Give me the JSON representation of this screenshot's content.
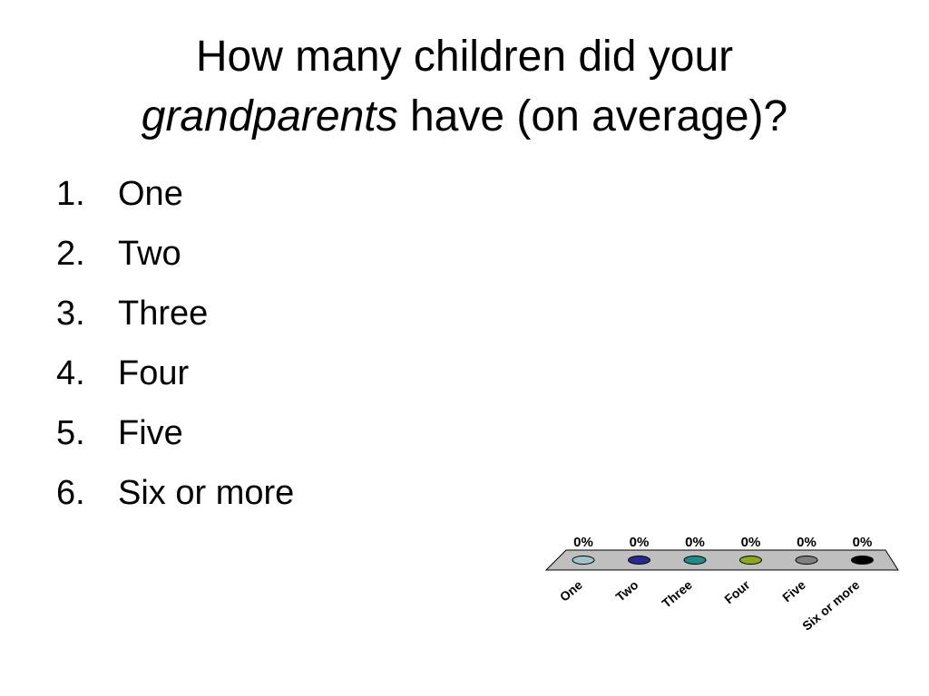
{
  "title": {
    "line1": "How many children did your",
    "italic": "grandparents",
    "rest": " have (on average)?"
  },
  "options": [
    {
      "number": "1.",
      "label": "One"
    },
    {
      "number": "2.",
      "label": "Two"
    },
    {
      "number": "3.",
      "label": "Three"
    },
    {
      "number": "4.",
      "label": "Four"
    },
    {
      "number": "5.",
      "label": "Five"
    },
    {
      "number": "6.",
      "label": "Six or more"
    }
  ],
  "chart_data": {
    "type": "bar",
    "categories": [
      "One",
      "Two",
      "Three",
      "Four",
      "Five",
      "Six or more"
    ],
    "values": [
      0,
      0,
      0,
      0,
      0,
      0
    ],
    "value_labels": [
      "0%",
      "0%",
      "0%",
      "0%",
      "0%",
      "0%"
    ],
    "colors": [
      "#9fc4cc",
      "#2a2a8c",
      "#1f8c8c",
      "#8aaa1a",
      "#808080",
      "#000000"
    ],
    "floor_color": "#bfbfbf",
    "title": "",
    "xlabel": "",
    "ylabel": "",
    "ylim": [
      0,
      100
    ]
  }
}
